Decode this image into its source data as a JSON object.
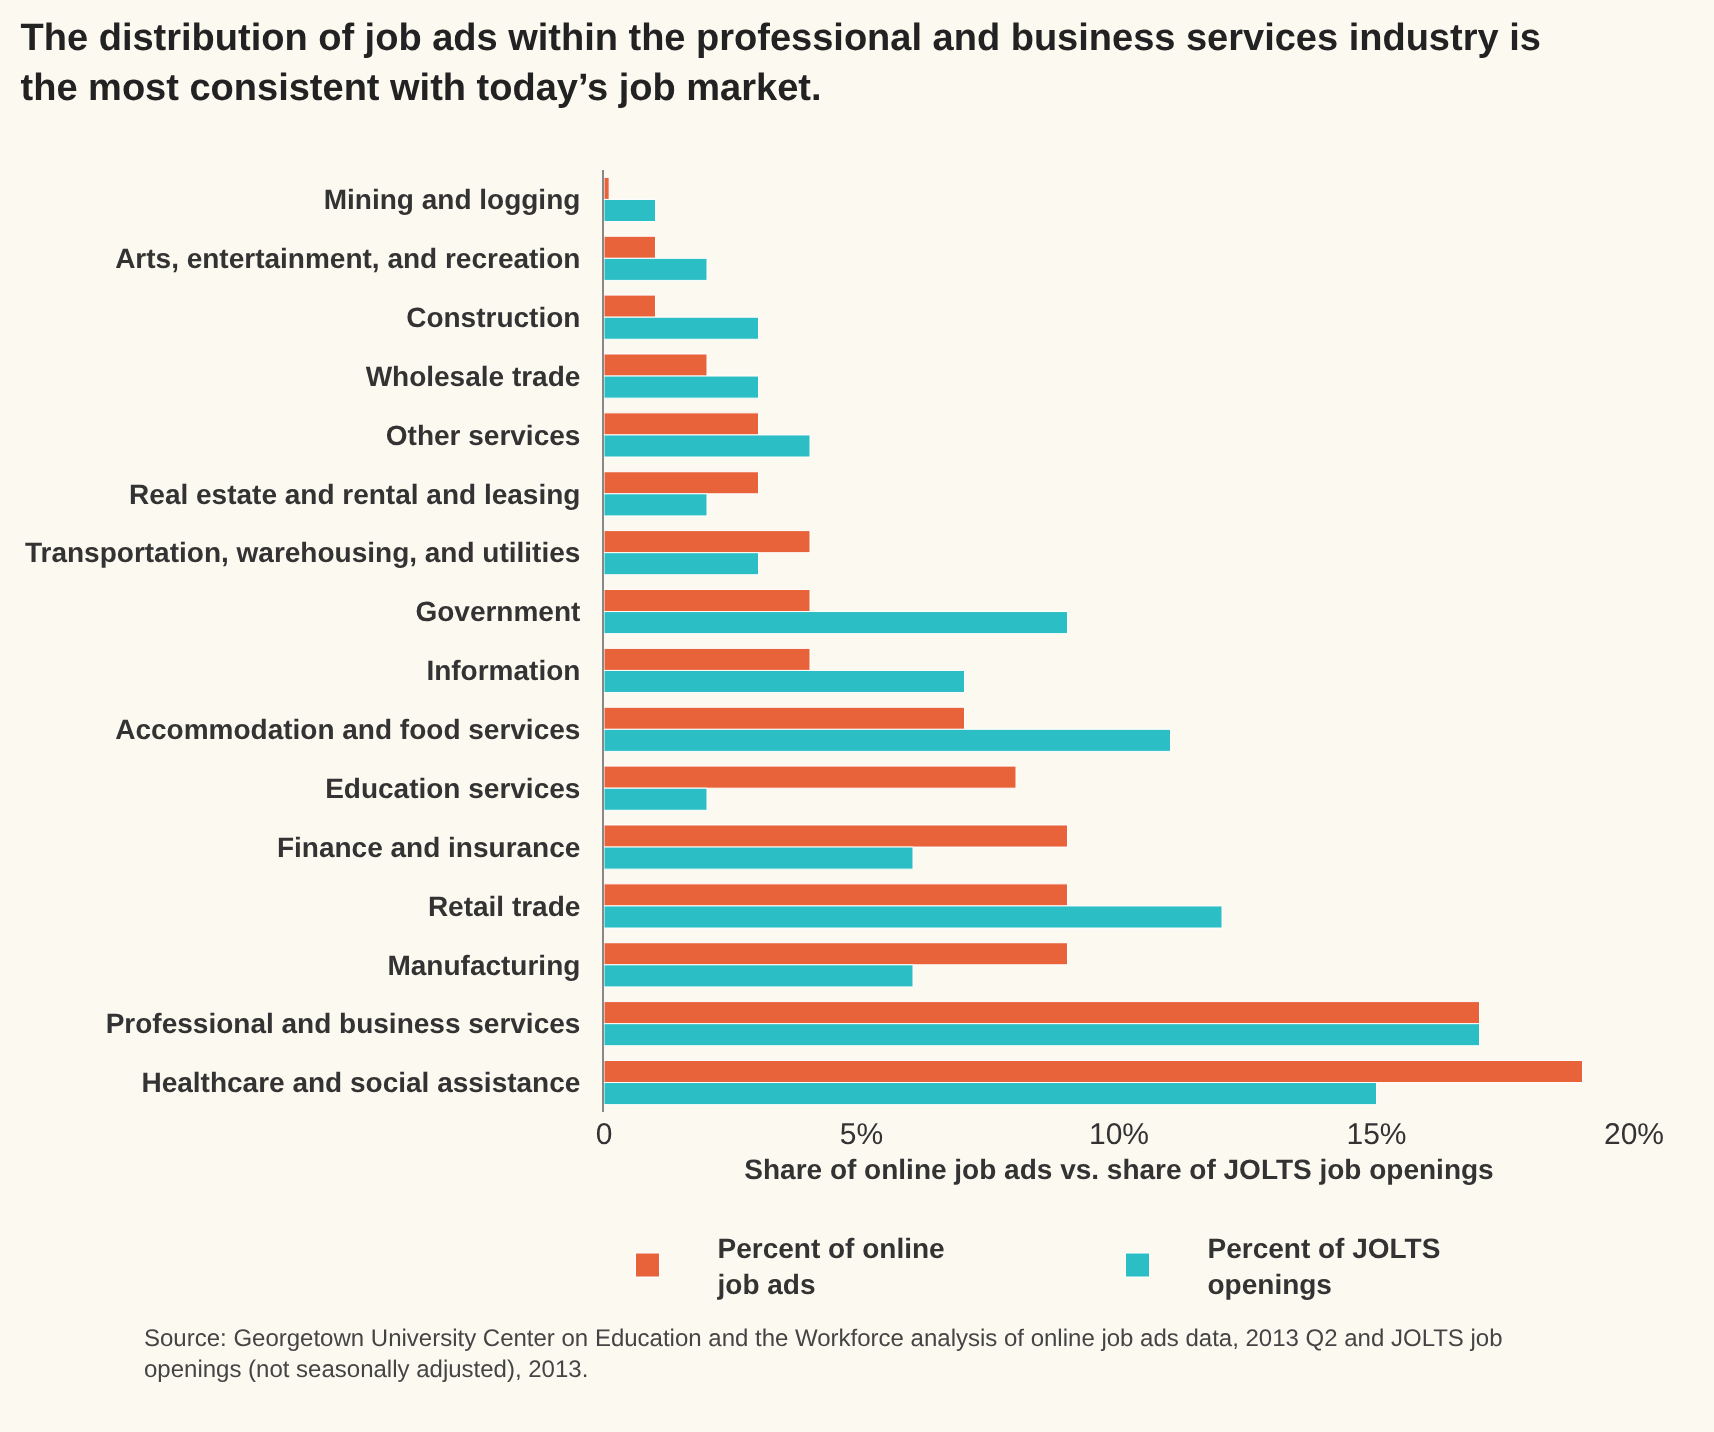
{
  "chart_data": {
    "type": "bar",
    "orientation": "horizontal",
    "title": "The distribution of job ads within the professional and business services industry is the most consistent with today’s job market.",
    "xlabel": "Share of online job ads vs. share of JOLTS job openings",
    "categories": [
      "Mining and logging",
      "Arts, entertainment, and recreation",
      "Construction",
      "Wholesale trade",
      "Other services",
      "Real estate and rental and leasing",
      "Transportation, warehousing, and utilities",
      "Government",
      "Information",
      "Accommodation and food services",
      "Education services",
      "Finance and insurance",
      "Retail trade",
      "Manufacturing",
      "Professional and business services",
      "Healthcare and social assistance"
    ],
    "series": [
      {
        "name": "Percent of online job ads",
        "color": "#e8623a",
        "values": [
          0.1,
          1,
          1,
          2,
          3,
          3,
          4,
          4,
          4,
          7,
          8,
          9,
          9,
          9,
          17,
          19
        ]
      },
      {
        "name": "Percent of JOLTS openings",
        "color": "#2bbec4",
        "values": [
          1,
          2,
          3,
          3,
          4,
          2,
          3,
          9,
          7,
          11,
          2,
          6,
          12,
          6,
          17,
          15
        ]
      }
    ],
    "xlim": [
      0,
      20
    ],
    "xticks": [
      0,
      {
        "value": 5,
        "label": "5%"
      },
      {
        "value": 10,
        "label": "10%"
      },
      {
        "value": 15,
        "label": "15%"
      },
      {
        "value": 20,
        "label": "20%"
      }
    ],
    "grid": false,
    "legend": "bottom",
    "annotations": [
      "Source: Georgetown University Center on Education and the Workforce analysis of online job ads data, 2013 Q2 and JOLTS job openings (not seasonally adjusted), 2013."
    ]
  }
}
